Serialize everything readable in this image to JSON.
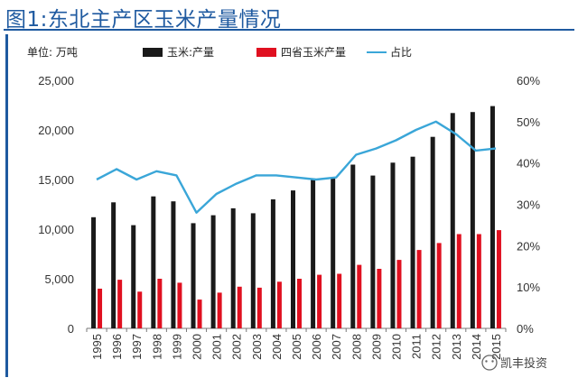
{
  "title": "图1:东北主产区玉米产量情况",
  "unit_label": "单位:  万吨",
  "watermark": "凯丰投资",
  "colors": {
    "title": "#1f5aa0",
    "corn_total": "#1a1a1a",
    "four_provinces": "#e01020",
    "share_line": "#3aa6d8"
  },
  "chart_data": {
    "type": "bar",
    "categories": [
      "1995",
      "1996",
      "1997",
      "1998",
      "1999",
      "2000",
      "2001",
      "2002",
      "2003",
      "2004",
      "2005",
      "2006",
      "2007",
      "2008",
      "2009",
      "2010",
      "2011",
      "2012",
      "2013",
      "2014",
      "2015"
    ],
    "series": [
      {
        "name": "玉米:产量",
        "type": "bar",
        "axis": "left",
        "values": [
          11200,
          12700,
          10400,
          13300,
          12800,
          10600,
          11400,
          12100,
          11600,
          13000,
          13900,
          15100,
          15200,
          16500,
          15400,
          16700,
          17300,
          19300,
          21700,
          21800,
          22400
        ]
      },
      {
        "name": "四省玉米产量",
        "type": "bar",
        "axis": "left",
        "values": [
          4000,
          4900,
          3700,
          5000,
          4600,
          2900,
          3600,
          4200,
          4100,
          4700,
          5000,
          5400,
          5500,
          6400,
          6000,
          6900,
          7900,
          8600,
          9500,
          9500,
          9900
        ]
      },
      {
        "name": "占比",
        "type": "line",
        "axis": "right",
        "values": [
          36,
          38.5,
          36,
          38,
          37,
          28,
          32.5,
          35,
          37,
          37,
          36.5,
          36,
          36.5,
          42,
          43.5,
          45.5,
          48,
          50,
          47,
          43,
          43.5
        ]
      }
    ],
    "y_left": {
      "min": 0,
      "max": 25000,
      "ticks": [
        "0",
        "5,000",
        "10,000",
        "15,000",
        "20,000",
        "25,000"
      ]
    },
    "y_right": {
      "min": 0,
      "max": 60,
      "ticks": [
        "0%",
        "10%",
        "20%",
        "30%",
        "40%",
        "50%",
        "60%"
      ]
    },
    "legend_position": "top",
    "grid": false
  }
}
